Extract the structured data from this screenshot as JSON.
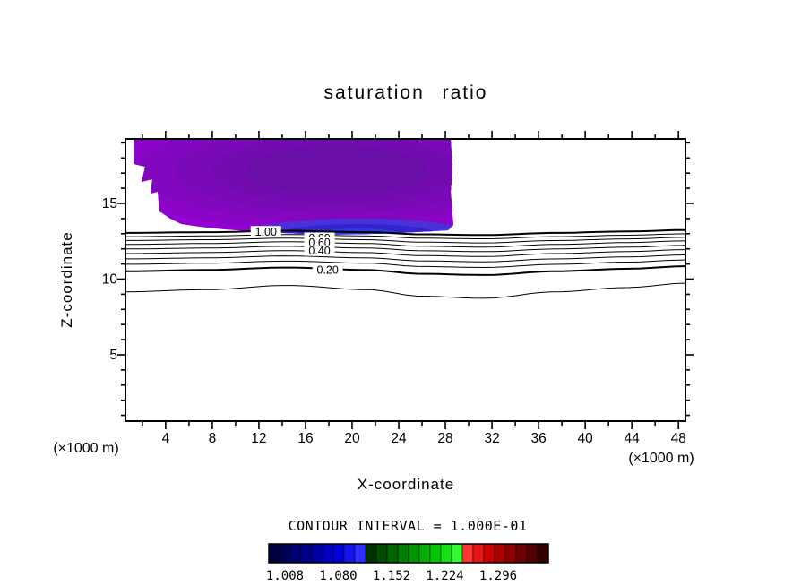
{
  "chart_data": {
    "type": "contour",
    "title": "saturation ratio",
    "xlabel": "X-coordinate",
    "ylabel": "Z-coordinate",
    "x_unit_left": "(×1000 m)",
    "x_unit_right": "(×1000 m)",
    "contour_interval_text": "CONTOUR INTERVAL = 1.000E-01",
    "xlim": [
      0.55,
      48.6
    ],
    "ylim": [
      0.62,
      19.26
    ],
    "x_tick_labels": [
      4,
      8,
      12,
      16,
      20,
      24,
      28,
      32,
      36,
      40,
      44,
      48
    ],
    "x_minor_step": 2,
    "y_tick_labels": [
      5,
      10,
      15
    ],
    "y_minor_step": 1,
    "contour_lines": [
      {
        "level": "1.00",
        "z": 13.1,
        "thick": true,
        "wave": 0.8
      },
      {
        "level": "0.90",
        "z": 12.85,
        "thick": false,
        "wave": 0.8
      },
      {
        "level": "0.80",
        "z": 12.6,
        "thick": false,
        "wave": 0.9
      },
      {
        "level": "0.70",
        "z": 12.35,
        "thick": false,
        "wave": 1.0
      },
      {
        "level": "0.60",
        "z": 12.05,
        "thick": false,
        "wave": 1.0
      },
      {
        "level": "0.50",
        "z": 11.75,
        "thick": false,
        "wave": 1.1
      },
      {
        "level": "0.40",
        "z": 11.4,
        "thick": false,
        "wave": 1.1
      },
      {
        "level": "0.30",
        "z": 11.05,
        "thick": false,
        "wave": 1.2
      },
      {
        "level": "0.20",
        "z": 10.6,
        "thick": true,
        "wave": 1.4
      },
      {
        "level": "0.10",
        "z": 9.3,
        "thick": false,
        "wave": 2.4
      }
    ],
    "contour_labels": [
      {
        "text": "1.00",
        "x": 12.6,
        "z": 13.15
      },
      {
        "text": "0.80",
        "x": 17.2,
        "z": 12.72
      },
      {
        "text": "0.60",
        "x": 17.2,
        "z": 12.42
      },
      {
        "text": "0.40",
        "x": 17.2,
        "z": 11.88
      },
      {
        "text": "0.20",
        "x": 17.9,
        "z": 10.62
      }
    ],
    "filled_region": {
      "base_color": "#9202d0",
      "band_colors": [
        "#8a05c8",
        "#8208c0",
        "#7a0ab8",
        "#720cb0",
        "#6a0ea8"
      ],
      "crescent_colors": [
        "#4a30d8",
        "#3424cc",
        "#2a3ae0"
      ]
    },
    "colorbar": {
      "labels": [
        "1.008",
        "1.080",
        "1.152",
        "1.224",
        "1.296"
      ],
      "label_color": "#8b1a1a",
      "colors": [
        "#000040",
        "#00005a",
        "#000074",
        "#00008e",
        "#0000a8",
        "#0000c2",
        "#0000dc",
        "#1414f0",
        "#2e2eff",
        "#003200",
        "#004b00",
        "#006400",
        "#007d00",
        "#009600",
        "#00af00",
        "#00c800",
        "#14e114",
        "#32fa32",
        "#ff3232",
        "#e61414",
        "#c80000",
        "#aa0000",
        "#8c0000",
        "#6e0000",
        "#500000",
        "#320000"
      ]
    }
  }
}
